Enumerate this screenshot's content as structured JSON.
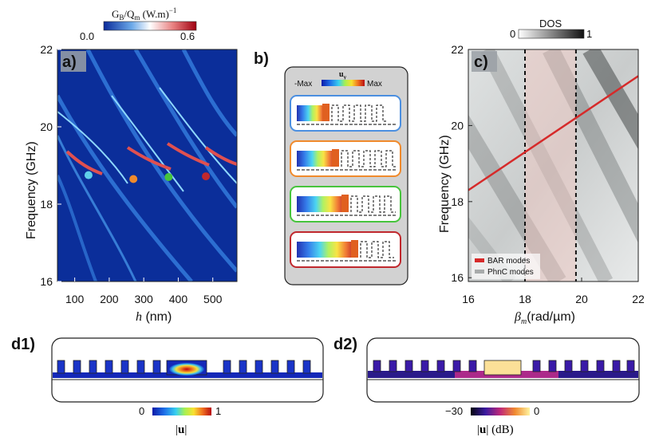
{
  "chart_data": [
    {
      "id": "a",
      "type": "heatmap",
      "panel_label": "a)",
      "xlabel": "h (nm)",
      "ylabel": "Frequency (GHz)",
      "xlim": [
        50,
        570
      ],
      "ylim": [
        16,
        22
      ],
      "x_ticks": [
        "100",
        "200",
        "300",
        "400",
        "500"
      ],
      "y_ticks": [
        "16",
        "18",
        "20",
        "22"
      ],
      "colorbar": {
        "title": "G_B/Q_m (W.m)^-1",
        "min_label": "0.0",
        "max_label": "0.6",
        "range": [
          0.0,
          0.6
        ]
      },
      "mode_markers": [
        {
          "h": 140,
          "f": 18.75,
          "color": "#5fd0ea"
        },
        {
          "h": 270,
          "f": 18.65,
          "color": "#f08a2c"
        },
        {
          "h": 372,
          "f": 18.7,
          "color": "#46c43c"
        },
        {
          "h": 480,
          "f": 18.72,
          "color": "#c0282d"
        }
      ]
    },
    {
      "id": "b",
      "type": "diagram",
      "panel_label": "b)",
      "field_label": "u_y",
      "scale_min_label": "-Max",
      "scale_max_label": "Max",
      "frames": [
        {
          "name": "mode-1",
          "color": "#4b8fe0"
        },
        {
          "name": "mode-2",
          "color": "#f08a2c"
        },
        {
          "name": "mode-3",
          "color": "#46c43c"
        },
        {
          "name": "mode-4",
          "color": "#c0282d"
        }
      ]
    },
    {
      "id": "c",
      "type": "line",
      "panel_label": "c)",
      "xlabel": "β_m(rad/µm)",
      "ylabel": "Frequency (GHz)",
      "xlim": [
        16,
        22
      ],
      "ylim": [
        15.9,
        22
      ],
      "x_ticks": [
        "16",
        "18",
        "20",
        "22"
      ],
      "y_ticks": [
        "16",
        "18",
        "20",
        "22"
      ],
      "colorbar": {
        "title": "DOS",
        "min_label": "0",
        "max_label": "1",
        "range": [
          0,
          1
        ]
      },
      "series": [
        {
          "name": "BAR modes",
          "color": "#d62a2a",
          "x": [
            16,
            22
          ],
          "y": [
            18.3,
            21.3
          ]
        }
      ],
      "legend": [
        "BAR modes",
        "PhnC modes"
      ],
      "highlight_band": {
        "x": [
          18,
          19.8
        ]
      },
      "vlines": [
        18,
        19.8
      ]
    },
    {
      "id": "d1",
      "type": "diagram",
      "panel_label": "d1)",
      "colorbar": {
        "title": "|u|",
        "min_label": "0",
        "max_label": "1",
        "range": [
          0,
          1
        ]
      }
    },
    {
      "id": "d2",
      "type": "diagram",
      "panel_label": "d2)",
      "colorbar": {
        "title": "|u| (dB)",
        "min_label": "−30",
        "max_label": "0",
        "range": [
          -30,
          0
        ]
      }
    }
  ]
}
